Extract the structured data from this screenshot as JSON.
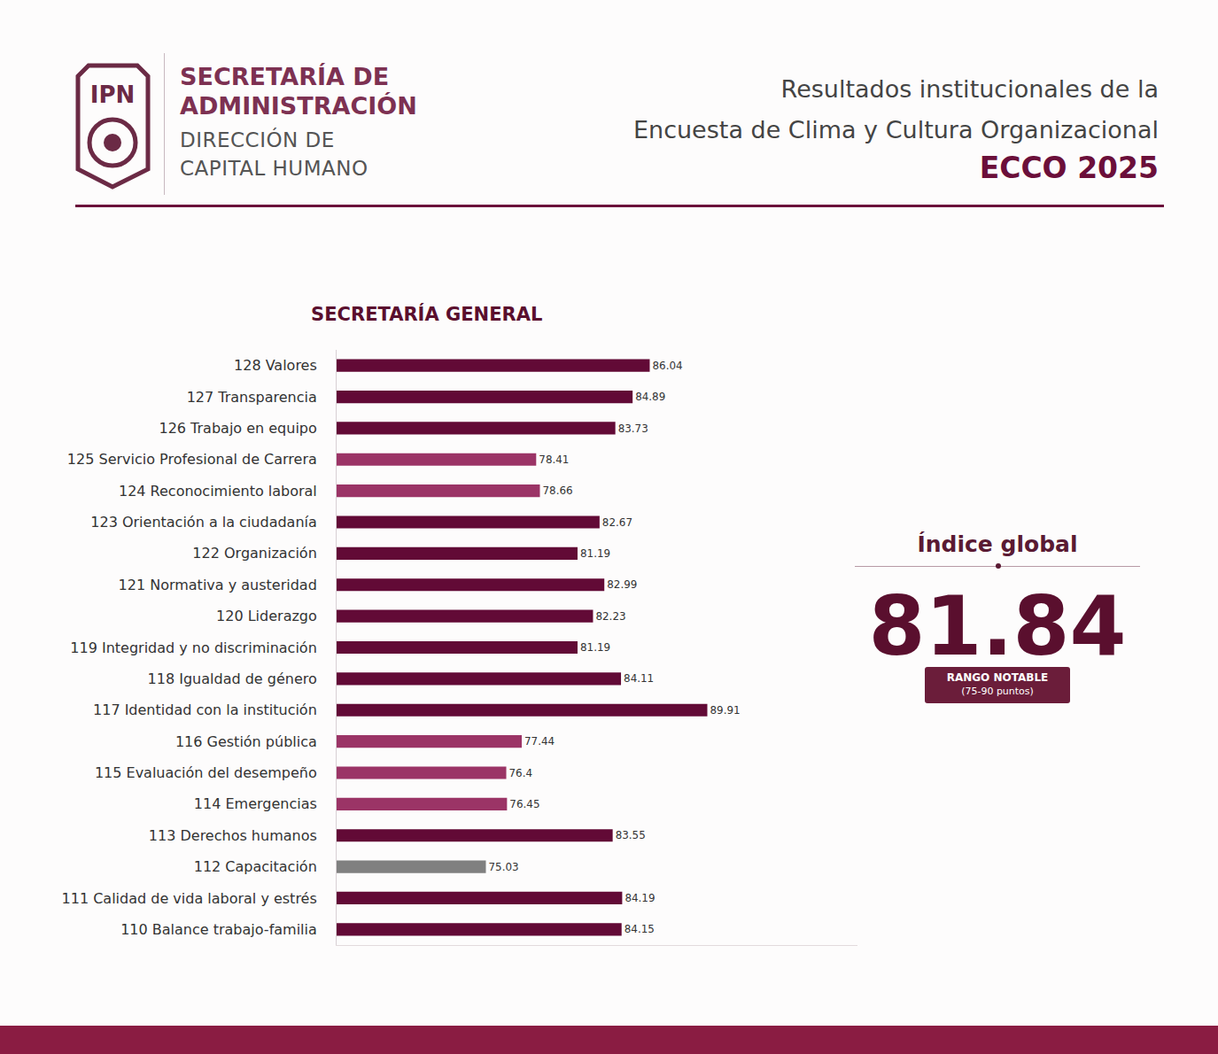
{
  "header": {
    "logo_text": "IPN",
    "org_lines": [
      "SECRETARÍA DE",
      "ADMINISTRACIÓN"
    ],
    "dept_lines": [
      "DIRECCIÓN DE",
      "CAPITAL HUMANO"
    ],
    "title_lines": [
      "Resultados institucionales de la",
      "Encuesta de Clima y Cultura Organizacional"
    ],
    "survey": "ECCO 2025"
  },
  "chart_data": {
    "type": "bar",
    "orientation": "horizontal",
    "title": "SECRETARÍA GENERAL",
    "categories": [
      "128 Valores",
      "127 Transparencia",
      "126 Trabajo en equipo",
      "125 Servicio Profesional de Carrera",
      "124 Reconocimiento laboral",
      "123 Orientación a la ciudadanía",
      "122 Organización",
      "121 Normativa y austeridad",
      "120 Liderazgo",
      "119 Integridad y no discriminación",
      "118 Igualdad de género",
      "117 Identidad con la institución",
      "116 Gestión pública",
      "115 Evaluación del desempeño",
      "114 Emergencias",
      "113 Derechos humanos",
      "112 Capacitación",
      "111 Calidad de vida laboral y estrés",
      "110 Balance trabajo-familia"
    ],
    "values": [
      86.04,
      84.89,
      83.73,
      78.41,
      78.66,
      82.67,
      81.19,
      82.99,
      82.23,
      81.19,
      84.11,
      89.91,
      77.44,
      76.4,
      76.45,
      83.55,
      75.03,
      84.19,
      84.15
    ],
    "colors": [
      "#620a36",
      "#620a36",
      "#620a36",
      "#9b3466",
      "#9b3466",
      "#620a36",
      "#620a36",
      "#620a36",
      "#620a36",
      "#620a36",
      "#620a36",
      "#620a36",
      "#9b3466",
      "#9b3466",
      "#9b3466",
      "#620a36",
      "#808080",
      "#620a36",
      "#620a36"
    ],
    "xlim": [
      65,
      100
    ],
    "xticks": [],
    "data_labels": true,
    "tick_labels": "y",
    "grid": false
  },
  "global_index": {
    "title": "Índice global",
    "value": 81.84,
    "range_label": "RANGO NOTABLE",
    "range_note": "(75-90 puntos)"
  }
}
